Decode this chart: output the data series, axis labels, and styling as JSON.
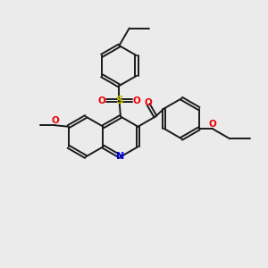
{
  "background_color": "#ebebeb",
  "bond_color": "#1a1a1a",
  "N_color": "#0000ee",
  "O_color": "#ee0000",
  "S_color": "#bbbb00",
  "line_width": 1.4,
  "figsize": [
    3.0,
    3.0
  ],
  "dpi": 100,
  "xlim": [
    0,
    10
  ],
  "ylim": [
    0,
    10
  ]
}
